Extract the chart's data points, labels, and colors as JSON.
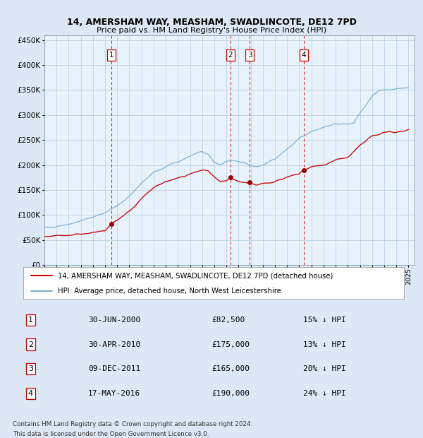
{
  "title1": "14, AMERSHAM WAY, MEASHAM, SWADLINCOTE, DE12 7PD",
  "title2": "Price paid vs. HM Land Registry's House Price Index (HPI)",
  "legend_line1": "14, AMERSHAM WAY, MEASHAM, SWADLINCOTE, DE12 7PD (detached house)",
  "legend_line2": "HPI: Average price, detached house, North West Leicestershire",
  "footer1": "Contains HM Land Registry data © Crown copyright and database right 2024.",
  "footer2": "This data is licensed under the Open Government Licence v3.0.",
  "sale_labels": [
    "1",
    "2",
    "3",
    "4"
  ],
  "sale_prices": [
    82500,
    175000,
    165000,
    190000
  ],
  "sale_year_decimals": [
    2000.5,
    2010.33,
    2011.92,
    2016.38
  ],
  "annotations": [
    {
      "label": "1",
      "date": "30-JUN-2000",
      "price": "£82,500",
      "pct": "15% ↓ HPI"
    },
    {
      "label": "2",
      "date": "30-APR-2010",
      "price": "£175,000",
      "pct": "13% ↓ HPI"
    },
    {
      "label": "3",
      "date": "09-DEC-2011",
      "price": "£165,000",
      "pct": "20% ↓ HPI"
    },
    {
      "label": "4",
      "date": "17-MAY-2016",
      "price": "£190,000",
      "pct": "24% ↓ HPI"
    }
  ],
  "hpi_color": "#7ab0d4",
  "price_color": "#cc0000",
  "vline_color": "#cc0000",
  "bg_color": "#dce8f5",
  "plot_bg": "#e8f2fb",
  "grid_color": "#b0c8de",
  "ylim": [
    0,
    460000
  ],
  "xlim_start": 1995.0,
  "xlim_end": 2025.5,
  "hpi_anchors_t": [
    1995.0,
    1996.0,
    1997.0,
    1998.0,
    1999.0,
    2000.0,
    2001.0,
    2002.0,
    2003.0,
    2004.0,
    2005.0,
    2006.0,
    2007.0,
    2008.0,
    2008.5,
    2009.0,
    2009.5,
    2010.0,
    2010.5,
    2011.0,
    2011.5,
    2012.0,
    2012.5,
    2013.0,
    2014.0,
    2015.0,
    2016.0,
    2017.0,
    2018.0,
    2019.0,
    2020.0,
    2020.5,
    2021.0,
    2022.0,
    2022.5,
    2023.0,
    2024.0,
    2025.0
  ],
  "hpi_anchors_v": [
    74000,
    78000,
    82000,
    88000,
    96000,
    105000,
    118000,
    138000,
    163000,
    185000,
    196000,
    206000,
    218000,
    228000,
    222000,
    205000,
    200000,
    207000,
    208000,
    206000,
    204000,
    200000,
    197000,
    199000,
    212000,
    232000,
    252000,
    268000,
    276000,
    282000,
    282000,
    285000,
    305000,
    338000,
    348000,
    350000,
    352000,
    355000
  ],
  "price_anchors_t": [
    1995.0,
    1996.0,
    1997.0,
    1998.0,
    1999.0,
    2000.0,
    2000.5,
    2001.0,
    2002.0,
    2003.0,
    2004.0,
    2005.0,
    2006.0,
    2007.0,
    2008.0,
    2008.5,
    2009.0,
    2009.5,
    2010.0,
    2010.33,
    2010.6,
    2011.0,
    2011.5,
    2011.92,
    2012.2,
    2012.5,
    2013.0,
    2013.5,
    2014.0,
    2015.0,
    2016.0,
    2016.38,
    2016.7,
    2017.0,
    2018.0,
    2019.0,
    2020.0,
    2021.0,
    2022.0,
    2023.0,
    2024.0,
    2025.0
  ],
  "price_anchors_v": [
    56000,
    58000,
    60000,
    62000,
    65000,
    69000,
    82500,
    90000,
    108000,
    132000,
    155000,
    167000,
    173000,
    182000,
    190000,
    188000,
    175000,
    165000,
    168000,
    175000,
    170000,
    167000,
    165000,
    165000,
    162000,
    160000,
    162000,
    164000,
    168000,
    175000,
    182000,
    190000,
    193000,
    196000,
    200000,
    210000,
    215000,
    238000,
    258000,
    265000,
    266000,
    270000
  ]
}
